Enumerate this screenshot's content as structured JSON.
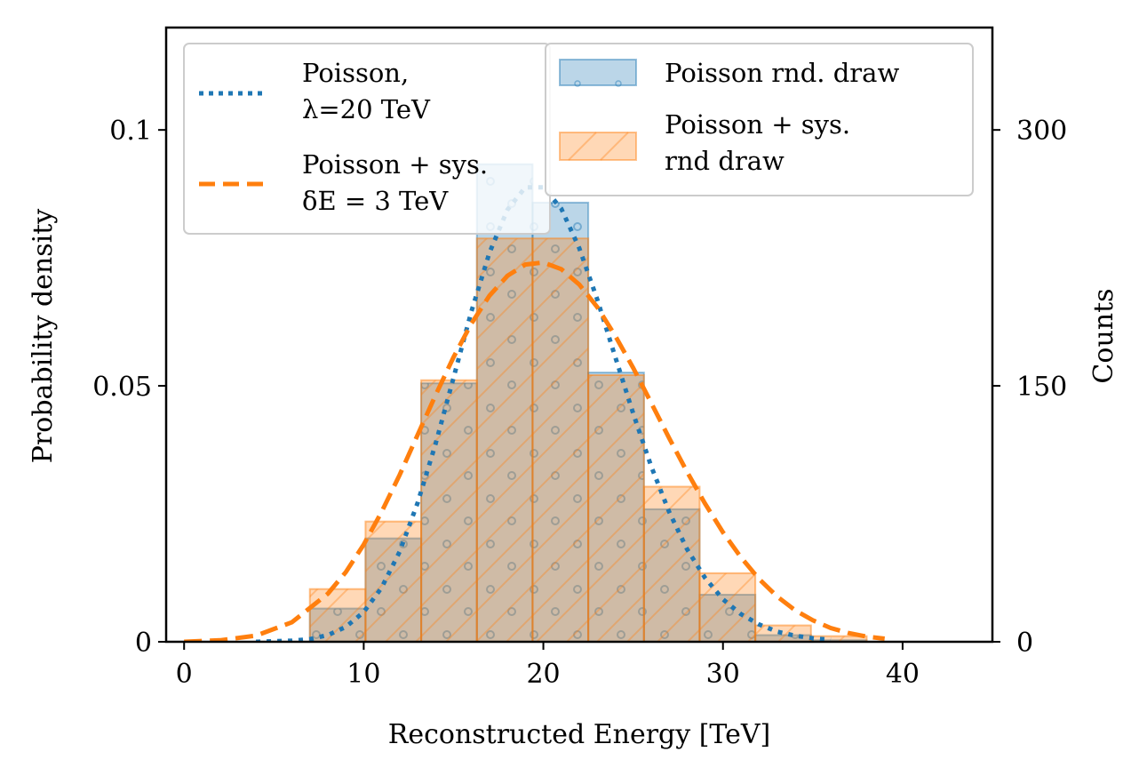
{
  "colors": {
    "poisson": "#1f77b4",
    "poisson_sys": "#ff7f0e",
    "hist_poisson_fill": "#a9c8e2",
    "hist_sys_fill": "#ffc690",
    "overlap_fill": "#d3b293"
  },
  "legend_left": {
    "entries": [
      {
        "line1": "Poisson,",
        "line2": "λ=20 TeV",
        "style": "dotted",
        "color_key": "poisson"
      },
      {
        "line1": "Poisson + sys.",
        "line2": "δE = 3 TeV",
        "style": "dashed",
        "color_key": "poisson_sys"
      }
    ]
  },
  "legend_right": {
    "entries": [
      {
        "line1": "Poisson rnd. draw",
        "line2": "",
        "style": "patch-dots",
        "color_key": "hist_poisson_fill"
      },
      {
        "line1": "Poisson + sys.",
        "line2": "rnd draw",
        "style": "patch-hatch",
        "color_key": "hist_sys_fill"
      }
    ]
  },
  "chart_data": {
    "type": "bar",
    "xlabel": "Reconstructed Energy [TeV]",
    "ylabel": "Probability density",
    "ylabel_right": "Counts",
    "xlim": [
      -1,
      45
    ],
    "ylim": [
      0,
      0.12
    ],
    "ylim_right": [
      0,
      360
    ],
    "xticks": [
      0,
      10,
      20,
      30,
      40
    ],
    "xtick_labels": [
      "0",
      "10",
      "20",
      "30",
      "40"
    ],
    "yticks": [
      0,
      0.05,
      0.1
    ],
    "ytick_labels": [
      "0",
      "0.05",
      "0.1"
    ],
    "yticks_right": [
      0,
      150,
      300
    ],
    "ytick_right_labels": [
      "0",
      "150",
      "300"
    ],
    "grid": false,
    "legend_placement": "upper-left and upper-center",
    "histograms": [
      {
        "name": "Poisson rnd. draw",
        "bin_edges": [
          7.0,
          10.1,
          13.2,
          16.3,
          19.4,
          22.5,
          25.6,
          28.7,
          31.8,
          34.9,
          38.0
        ],
        "density": [
          0.0065,
          0.0202,
          0.0505,
          0.0933,
          0.0858,
          0.0526,
          0.0259,
          0.0092,
          0.0013,
          0.0003
        ]
      },
      {
        "name": "Poisson + sys. rnd draw",
        "bin_edges": [
          7.0,
          10.1,
          13.2,
          16.3,
          19.4,
          22.5,
          25.6,
          28.7,
          31.8,
          34.9,
          38.0
        ],
        "density": [
          0.0103,
          0.0235,
          0.0511,
          0.0788,
          0.0788,
          0.0521,
          0.0303,
          0.0134,
          0.0032,
          0.0011
        ]
      }
    ],
    "series": [
      {
        "name": "Poisson, λ=20 TeV",
        "x": [
          4,
          5,
          6,
          7,
          8,
          9,
          10,
          11,
          12,
          13,
          14,
          15,
          16,
          17,
          18,
          19,
          20,
          21,
          22,
          23,
          24,
          25,
          26,
          27,
          28,
          29,
          30,
          31,
          32,
          33,
          34,
          35,
          36
        ],
        "y": [
          0.0,
          0.0001,
          0.0002,
          0.0005,
          0.0013,
          0.0029,
          0.0058,
          0.0106,
          0.0176,
          0.0271,
          0.0387,
          0.0516,
          0.0646,
          0.076,
          0.0844,
          0.0888,
          0.0888,
          0.0846,
          0.0769,
          0.0669,
          0.0557,
          0.0446,
          0.0343,
          0.0254,
          0.0181,
          0.0125,
          0.0083,
          0.0054,
          0.0034,
          0.002,
          0.0012,
          0.0007,
          0.0004
        ]
      },
      {
        "name": "Poisson + sys. δE = 3 TeV",
        "x": [
          0,
          2,
          4,
          6,
          8,
          9,
          10,
          11,
          12,
          13,
          14,
          15,
          16,
          17,
          18,
          19,
          20,
          21,
          22,
          23,
          24,
          25,
          26,
          27,
          28,
          29,
          30,
          31,
          32,
          33,
          34,
          35,
          36,
          37,
          38,
          39
        ],
        "y": [
          0.0,
          0.0003,
          0.0012,
          0.0038,
          0.0094,
          0.0136,
          0.019,
          0.0254,
          0.0326,
          0.0404,
          0.0482,
          0.0556,
          0.0622,
          0.0676,
          0.0715,
          0.0737,
          0.0741,
          0.0728,
          0.0698,
          0.0654,
          0.0598,
          0.0535,
          0.0467,
          0.0398,
          0.0332,
          0.027,
          0.0214,
          0.0165,
          0.0123,
          0.0089,
          0.0062,
          0.0042,
          0.0027,
          0.0017,
          0.001,
          0.0006
        ]
      }
    ]
  }
}
